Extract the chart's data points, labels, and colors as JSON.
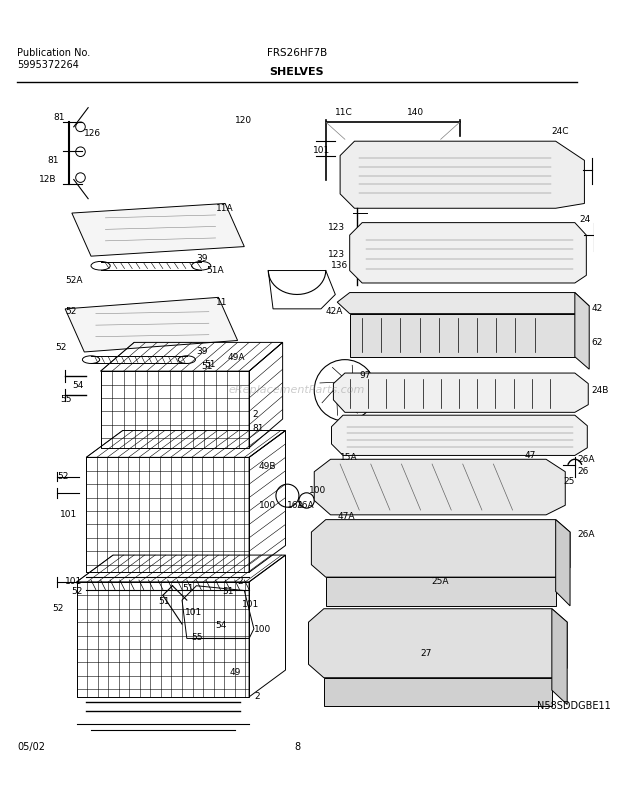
{
  "title": "SHELVES",
  "model": "FRS26HF7B",
  "pub_no_line1": "Publication No.",
  "pub_no_line2": "5995372264",
  "date": "05/02",
  "page": "8",
  "diagram_id": "N58SDDGBE11",
  "bg_color": "#ffffff",
  "lc": "#000000",
  "watermark": "eReplacementParts.com"
}
